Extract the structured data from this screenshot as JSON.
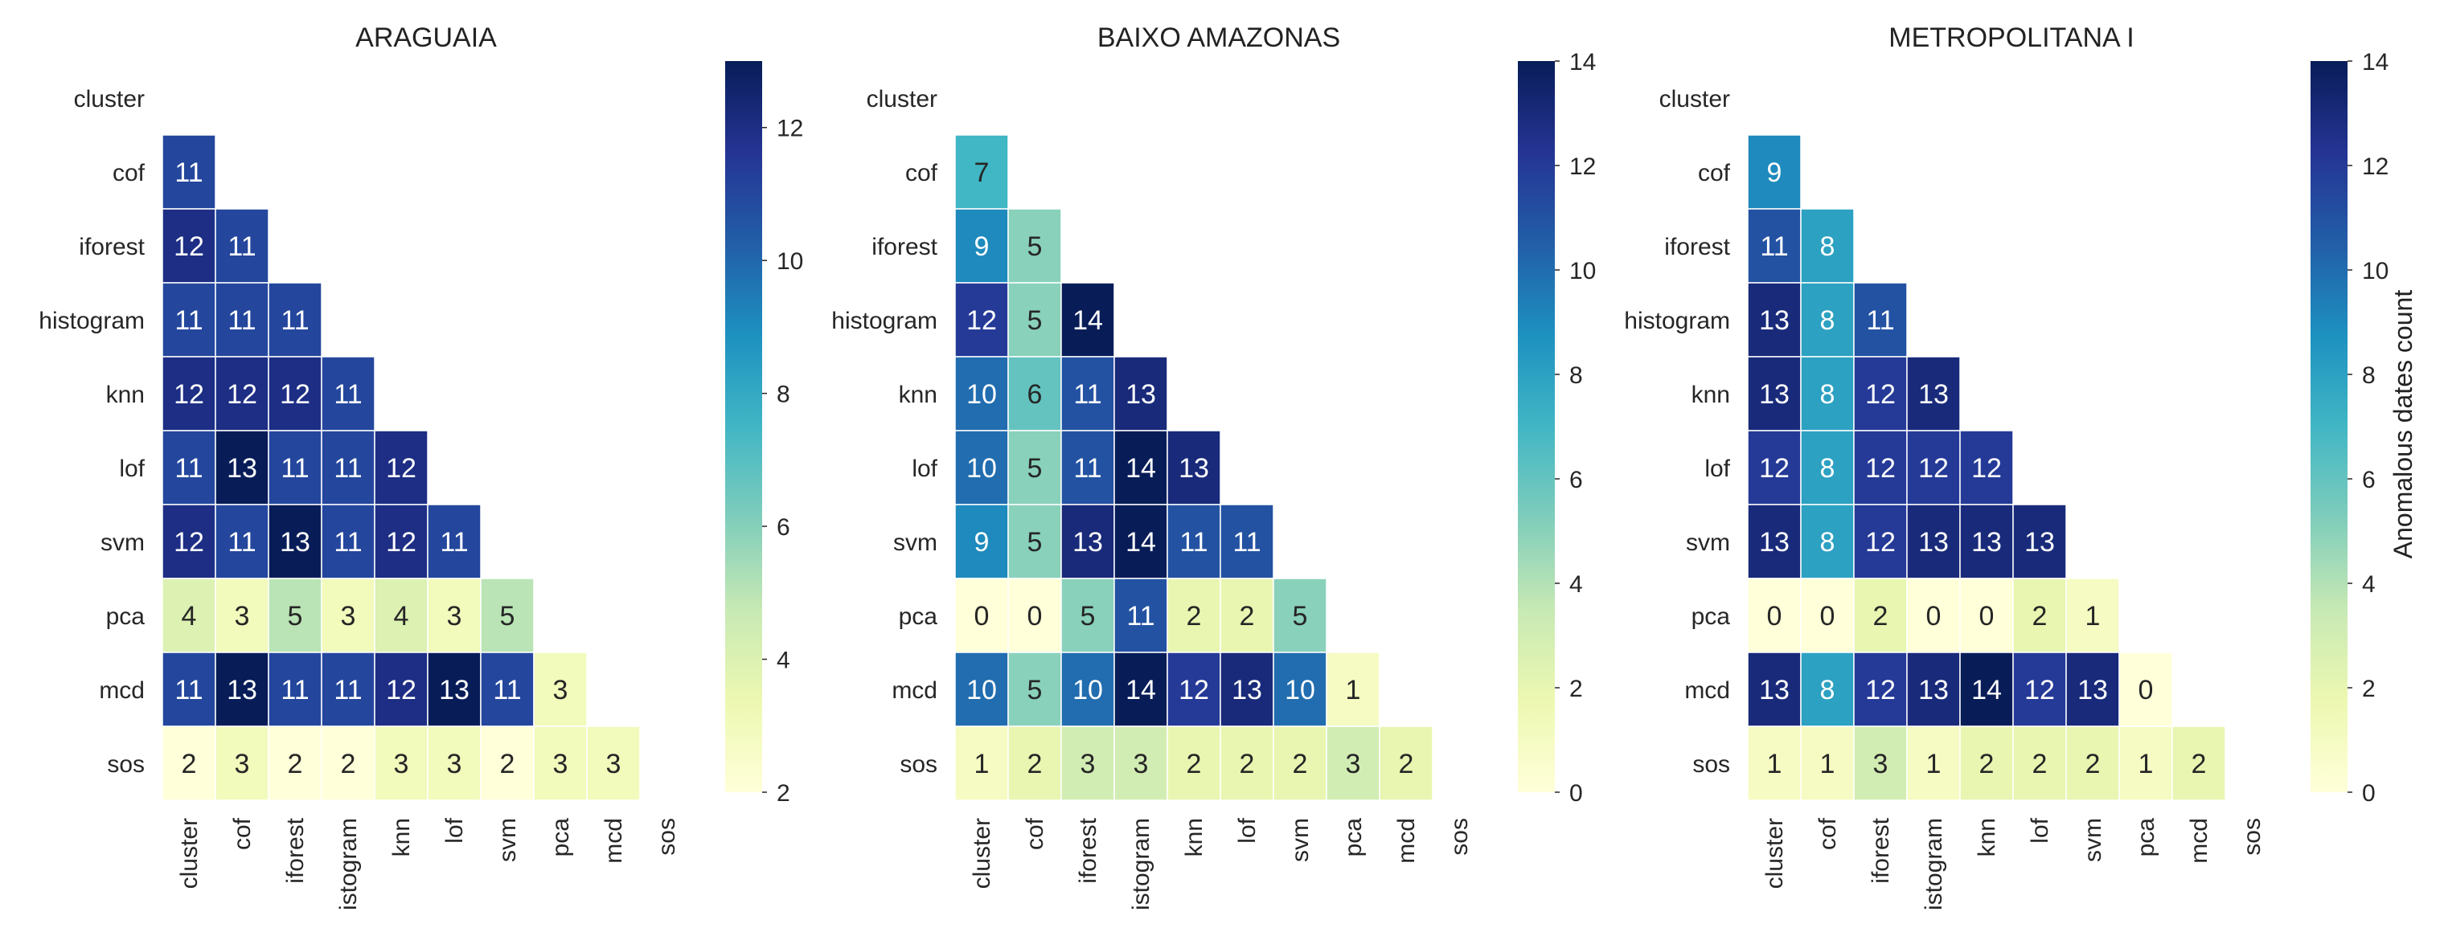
{
  "figure": {
    "colorbar_label": "Anomalous dates count",
    "colormap": "YlGnBu",
    "colormap_stops": [
      "#ffffd9",
      "#edf8b1",
      "#c7e9b4",
      "#7fcdbb",
      "#41b6c4",
      "#1d91c0",
      "#225ea8",
      "#253494",
      "#081d58"
    ]
  },
  "chart_data": [
    {
      "type": "heatmap",
      "title": "ARAGUAIA",
      "row_labels": [
        "cluster",
        "cof",
        "iforest",
        "histogram",
        "knn",
        "lof",
        "svm",
        "pca",
        "mcd",
        "sos"
      ],
      "col_labels": [
        "cluster",
        "cof",
        "iforest",
        "istogram",
        "knn",
        "lof",
        "svm",
        "pca",
        "mcd",
        "sos"
      ],
      "matrix": [
        [],
        [
          11
        ],
        [
          12,
          11
        ],
        [
          11,
          11,
          11
        ],
        [
          12,
          12,
          12,
          11
        ],
        [
          11,
          13,
          11,
          11,
          12
        ],
        [
          12,
          11,
          13,
          11,
          12,
          11
        ],
        [
          4,
          3,
          5,
          3,
          4,
          3,
          5
        ],
        [
          11,
          13,
          11,
          11,
          12,
          13,
          11,
          3
        ],
        [
          2,
          3,
          2,
          2,
          3,
          3,
          2,
          3,
          3
        ]
      ],
      "color_range": [
        2,
        13
      ],
      "colorbar_ticks": [
        2,
        4,
        6,
        8,
        10,
        12
      ]
    },
    {
      "type": "heatmap",
      "title": "BAIXO AMAZONAS",
      "row_labels": [
        "cluster",
        "cof",
        "iforest",
        "histogram",
        "knn",
        "lof",
        "svm",
        "pca",
        "mcd",
        "sos"
      ],
      "col_labels": [
        "cluster",
        "cof",
        "iforest",
        "istogram",
        "knn",
        "lof",
        "svm",
        "pca",
        "mcd",
        "sos"
      ],
      "matrix": [
        [],
        [
          7
        ],
        [
          9,
          5
        ],
        [
          12,
          5,
          14
        ],
        [
          10,
          6,
          11,
          13
        ],
        [
          10,
          5,
          11,
          14,
          13
        ],
        [
          9,
          5,
          13,
          14,
          11,
          11
        ],
        [
          0,
          0,
          5,
          11,
          2,
          2,
          5
        ],
        [
          10,
          5,
          10,
          14,
          12,
          13,
          10,
          1
        ],
        [
          1,
          2,
          3,
          3,
          2,
          2,
          2,
          3,
          2
        ]
      ],
      "color_range": [
        0,
        14
      ],
      "colorbar_ticks": [
        0,
        2,
        4,
        6,
        8,
        10,
        12,
        14
      ]
    },
    {
      "type": "heatmap",
      "title": "METROPOLITANA I",
      "row_labels": [
        "cluster",
        "cof",
        "iforest",
        "histogram",
        "knn",
        "lof",
        "svm",
        "pca",
        "mcd",
        "sos"
      ],
      "col_labels": [
        "cluster",
        "cof",
        "iforest",
        "istogram",
        "knn",
        "lof",
        "svm",
        "pca",
        "mcd",
        "sos"
      ],
      "matrix": [
        [],
        [
          9
        ],
        [
          11,
          8
        ],
        [
          13,
          8,
          11
        ],
        [
          13,
          8,
          12,
          13
        ],
        [
          12,
          8,
          12,
          12,
          12
        ],
        [
          13,
          8,
          12,
          13,
          13,
          13
        ],
        [
          0,
          0,
          2,
          0,
          0,
          2,
          1
        ],
        [
          13,
          8,
          12,
          13,
          14,
          12,
          13,
          0
        ],
        [
          1,
          1,
          3,
          1,
          2,
          2,
          2,
          1,
          2
        ]
      ],
      "color_range": [
        0,
        14
      ],
      "colorbar_ticks": [
        0,
        2,
        4,
        6,
        8,
        10,
        12,
        14
      ]
    }
  ]
}
